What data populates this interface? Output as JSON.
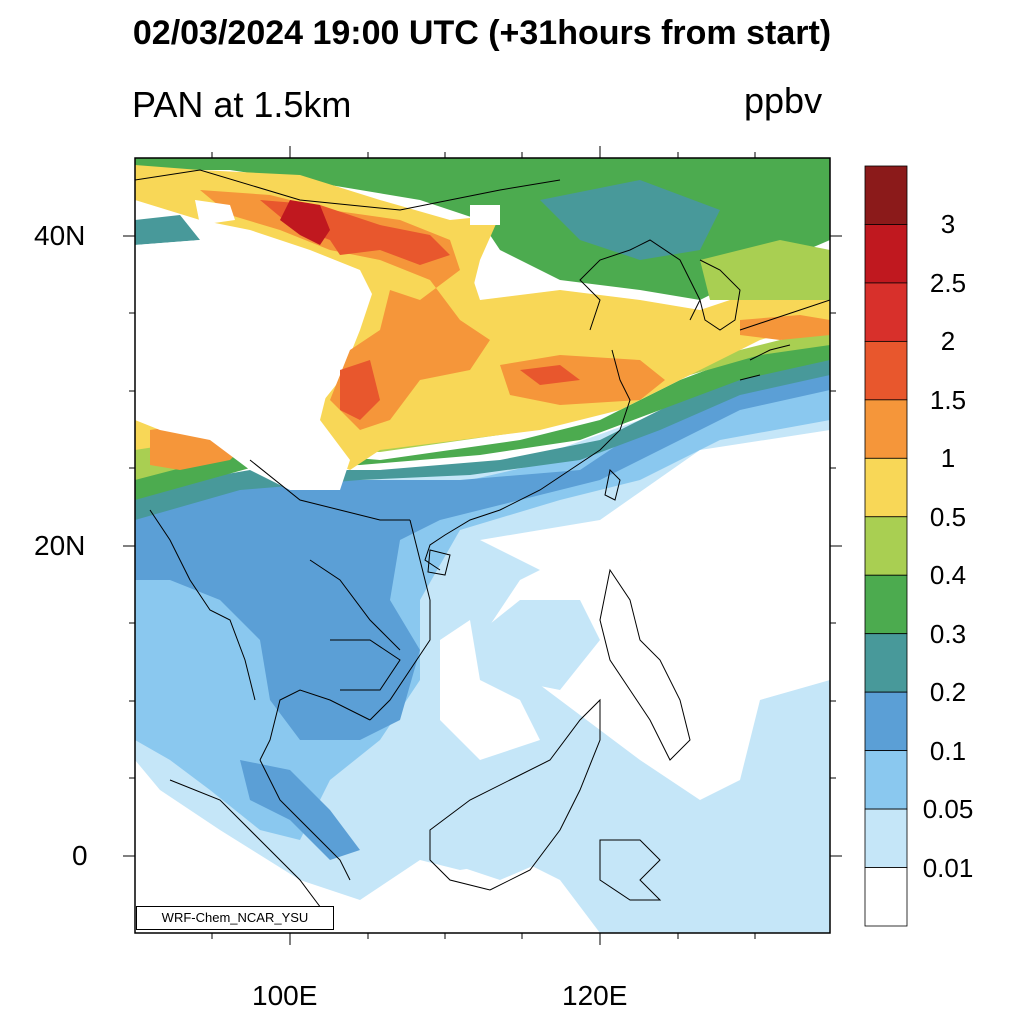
{
  "header": {
    "title": "02/03/2024 19:00 UTC (+31hours from start)",
    "variable_label": "PAN at 1.5km",
    "units_label": "ppbv"
  },
  "axes": {
    "x_ticks": [
      "100E",
      "120E"
    ],
    "y_ticks": [
      "40N",
      "20N",
      "0"
    ]
  },
  "colorbar": {
    "labels": [
      "3",
      "2.5",
      "2",
      "1.5",
      "1",
      "0.5",
      "0.4",
      "0.3",
      "0.2",
      "0.1",
      "0.05",
      "0.01"
    ],
    "colors_top_to_bottom": [
      "#8b1a1a",
      "#c0181f",
      "#d8302b",
      "#e8572d",
      "#f5963a",
      "#f8d757",
      "#a9cf52",
      "#4cab4f",
      "#48999a",
      "#5b9fd6",
      "#8ac8ef",
      "#c5e6f8",
      "#ffffff"
    ]
  },
  "map": {
    "projection_extent": {
      "lon": [
        90,
        135
      ],
      "lat": [
        -5,
        45
      ]
    },
    "field_colors": {
      "red": "#c0181f",
      "orange_red": "#e8572d",
      "orange": "#f5963a",
      "yellow": "#f8d757",
      "light_green": "#a9cf52",
      "green": "#4cab4f",
      "teal": "#48999a",
      "blue": "#5b9fd6",
      "light_blue": "#8ac8ef",
      "pale_blue": "#c5e6f8"
    }
  },
  "credit": "WRF-Chem_NCAR_YSU"
}
